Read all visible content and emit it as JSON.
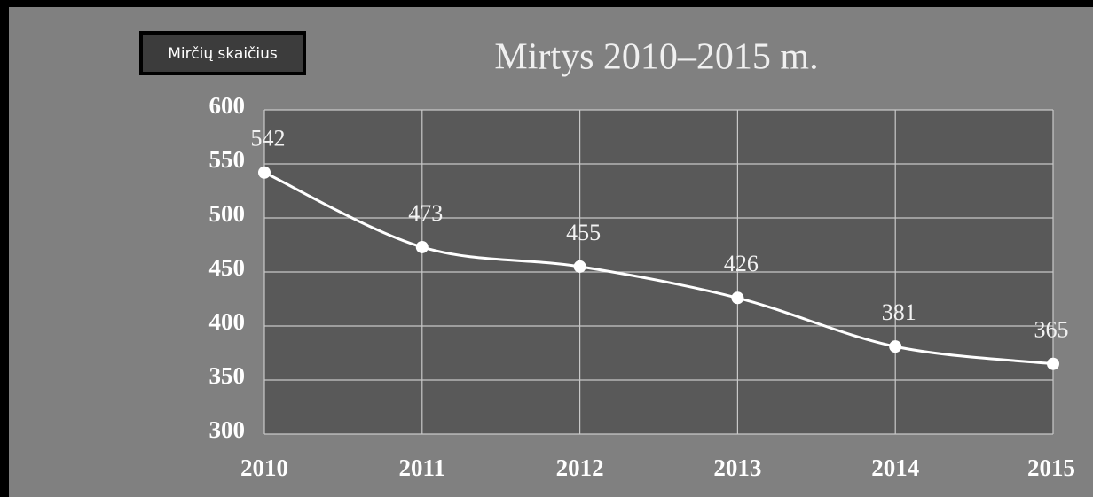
{
  "chart_data": {
    "type": "line",
    "title": "Mirtys 2010–2015 m.",
    "categories": [
      "2010",
      "2011",
      "2012",
      "2013",
      "2014",
      "2015"
    ],
    "series": [
      {
        "name": "Mirčių skaičius",
        "color": "#ffffff",
        "values": [
          542,
          473,
          455,
          426,
          381,
          365
        ]
      }
    ],
    "ylim": [
      300,
      600
    ],
    "yticks": [
      300,
      350,
      400,
      450,
      500,
      550,
      600
    ],
    "grid": true,
    "smooth": true,
    "legend": "top-left"
  }
}
